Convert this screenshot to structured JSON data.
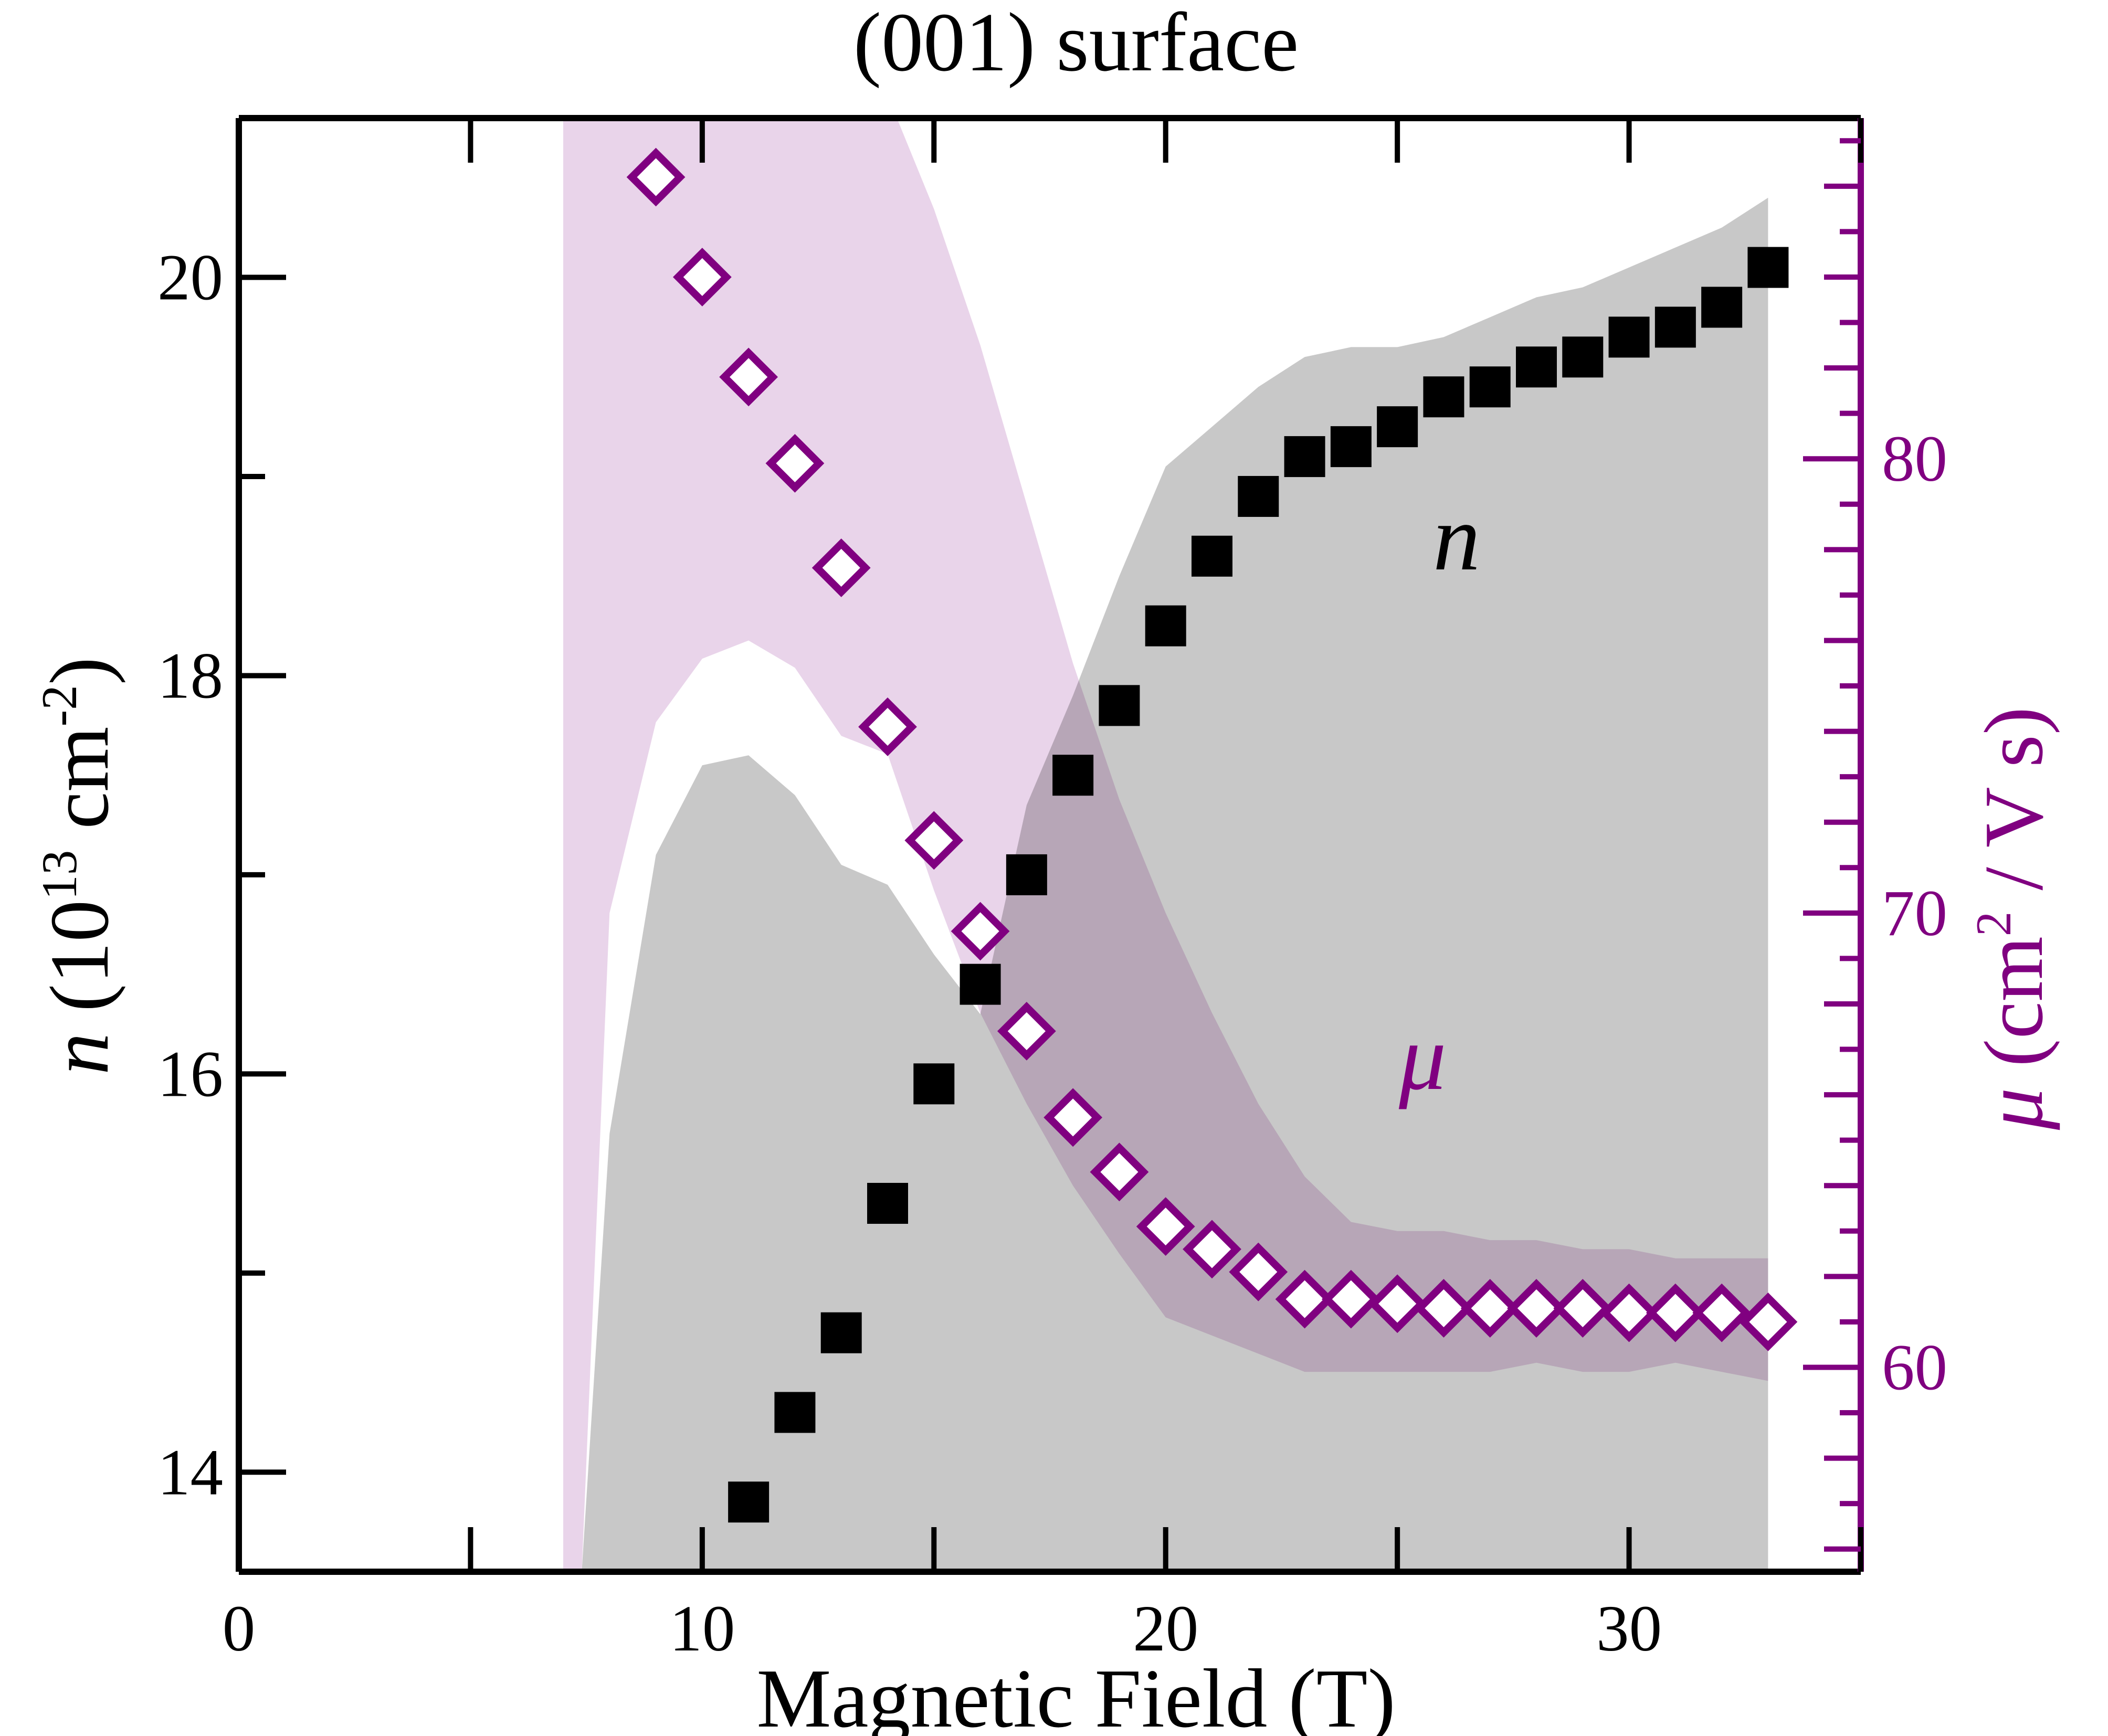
{
  "chart_data": {
    "type": "scatter",
    "title": "(001) surface",
    "xlabel": "Magnetic Field (T)",
    "xlim": [
      0,
      35
    ],
    "x_ticks": [
      0,
      10,
      20,
      30
    ],
    "left_axis": {
      "label_symbol": "n",
      "label_rest": " (10",
      "label_exp1": "13",
      "label_mid": " cm",
      "label_exp2": "-2",
      "label_end": ")",
      "ylim": [
        13.5,
        20.8
      ],
      "ticks": [
        14,
        16,
        18,
        20
      ]
    },
    "right_axis": {
      "label_symbol": "μ",
      "label_rest": " (cm",
      "label_exp": "2",
      "label_end": " / V s)",
      "ylim": [
        55.5,
        87.5
      ],
      "ticks": [
        60,
        70,
        80
      ],
      "color": "#800080"
    },
    "annotations": [
      {
        "text": "n",
        "series": "n"
      },
      {
        "text": "μ",
        "series": "mu"
      }
    ],
    "series": [
      {
        "key": "n",
        "axis": "left",
        "marker": "filled-square",
        "color": "#000000",
        "band_color": "#c8c8c8",
        "x": [
          11,
          12,
          13,
          14,
          15,
          16,
          17,
          18,
          19,
          20,
          21,
          22,
          23,
          24,
          25,
          26,
          27,
          28,
          29,
          30,
          31,
          32,
          33
        ],
        "y": [
          13.85,
          14.3,
          14.7,
          15.35,
          15.95,
          16.45,
          17.0,
          17.5,
          17.85,
          18.25,
          18.6,
          18.9,
          19.1,
          19.15,
          19.25,
          19.4,
          19.45,
          19.55,
          19.6,
          19.7,
          19.75,
          19.85,
          20.05
        ],
        "band_x": [
          7.4,
          8,
          9,
          10,
          11,
          12,
          13,
          14,
          15,
          16,
          17,
          18,
          19,
          20,
          21,
          22,
          23,
          24,
          25,
          26,
          27,
          28,
          29,
          30,
          31,
          32,
          33
        ],
        "band_upper": [
          13.5,
          15.7,
          17.1,
          17.55,
          17.6,
          17.4,
          17.05,
          16.95,
          16.6,
          16.3,
          17.35,
          17.9,
          18.5,
          19.05,
          19.25,
          19.45,
          19.6,
          19.65,
          19.65,
          19.7,
          19.8,
          19.9,
          19.95,
          20.05,
          20.15,
          20.25,
          20.4
        ],
        "band_lower": [
          13.5,
          13.5,
          13.5,
          13.5,
          13.5,
          13.5,
          13.5,
          13.5,
          13.5,
          13.5,
          13.5,
          13.5,
          13.5,
          13.5,
          13.5,
          13.5,
          13.5,
          13.5,
          13.5,
          13.5,
          13.5,
          13.5,
          13.5,
          13.5,
          13.5,
          13.5,
          13.5
        ]
      },
      {
        "key": "mu",
        "axis": "right",
        "marker": "open-diamond",
        "color": "#800080",
        "band_color": "#e9d4ea",
        "x": [
          9,
          10,
          11,
          12,
          13,
          14,
          15,
          16,
          17,
          18,
          19,
          20,
          21,
          22,
          23,
          24,
          25,
          26,
          27,
          28,
          29,
          30,
          31,
          32,
          33
        ],
        "y": [
          86.2,
          84.0,
          81.8,
          79.9,
          77.6,
          74.1,
          71.6,
          69.6,
          67.4,
          65.5,
          64.3,
          63.1,
          62.6,
          62.1,
          61.5,
          61.5,
          61.4,
          61.3,
          61.3,
          61.3,
          61.3,
          61.2,
          61.2,
          61.2,
          61.0
        ]
      }
    ]
  }
}
